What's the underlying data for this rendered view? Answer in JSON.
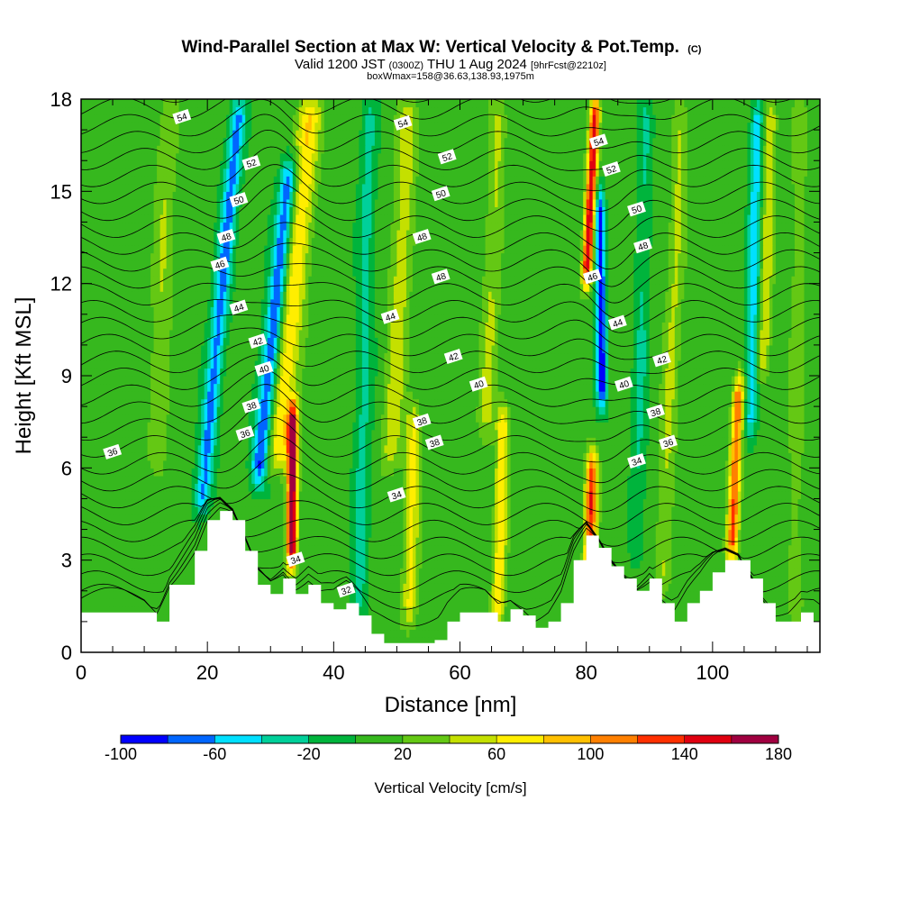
{
  "header": {
    "title_main": "Wind-Parallel Section at Max W: Vertical Velocity & Pot.Temp.",
    "title_copyright": "(C)",
    "subtitle_prefix": "Valid 1200 JST",
    "subtitle_utc": "(0300Z)",
    "subtitle_date": "THU 1 Aug 2024",
    "subtitle_forecast": "[9hrFcst@2210z]",
    "subtitle_box": "boxWmax=158@36.63,138.93,1975m"
  },
  "chart_data": {
    "type": "heatmap",
    "xlabel": "Distance [nm]",
    "ylabel": "Height [Kft MSL]",
    "xlim": [
      0,
      117
    ],
    "ylim": [
      0,
      18
    ],
    "x_ticks": [
      "0",
      "20",
      "40",
      "60",
      "80",
      "100"
    ],
    "y_ticks": [
      "0",
      "3",
      "6",
      "9",
      "12",
      "15",
      "18"
    ],
    "colorbar": {
      "label": "Vertical Velocity [cm/s]",
      "tick_labels": [
        "-100",
        "-60",
        "-20",
        "20",
        "60",
        "100",
        "140",
        "180"
      ],
      "levels": [
        -100,
        -80,
        -60,
        -40,
        -20,
        0,
        20,
        40,
        60,
        80,
        100,
        120,
        140,
        160,
        180
      ],
      "colors": [
        "#0000ff",
        "#0066ff",
        "#00e0ff",
        "#00d09a",
        "#00b43c",
        "#36b81e",
        "#64c814",
        "#c4e000",
        "#ffee00",
        "#ffc000",
        "#ff8000",
        "#ff3000",
        "#e00010",
        "#a00040",
        "#60108c"
      ]
    },
    "terrain_kft": [
      [
        0,
        1.3
      ],
      [
        10,
        1.3
      ],
      [
        12,
        1.0
      ],
      [
        14,
        2.2
      ],
      [
        18,
        3.3
      ],
      [
        20,
        4.3
      ],
      [
        22,
        4.6
      ],
      [
        24,
        4.3
      ],
      [
        26,
        3.3
      ],
      [
        28,
        2.2
      ],
      [
        30,
        1.9
      ],
      [
        32,
        2.4
      ],
      [
        34,
        1.9
      ],
      [
        36,
        2.2
      ],
      [
        38,
        1.6
      ],
      [
        40,
        1.4
      ],
      [
        42,
        1.6
      ],
      [
        44,
        1.2
      ],
      [
        46,
        0.6
      ],
      [
        48,
        0.3
      ],
      [
        52,
        0.3
      ],
      [
        56,
        0.4
      ],
      [
        58,
        1.0
      ],
      [
        60,
        1.3
      ],
      [
        64,
        1.3
      ],
      [
        66,
        1.0
      ],
      [
        68,
        1.4
      ],
      [
        70,
        1.2
      ],
      [
        72,
        0.8
      ],
      [
        74,
        1.0
      ],
      [
        76,
        1.6
      ],
      [
        78,
        3.0
      ],
      [
        80,
        3.8
      ],
      [
        82,
        3.4
      ],
      [
        84,
        2.8
      ],
      [
        86,
        2.4
      ],
      [
        88,
        2.0
      ],
      [
        90,
        2.4
      ],
      [
        92,
        1.6
      ],
      [
        94,
        1.0
      ],
      [
        96,
        1.6
      ],
      [
        98,
        2.0
      ],
      [
        100,
        2.6
      ],
      [
        102,
        3.0
      ],
      [
        104,
        3.0
      ],
      [
        106,
        2.4
      ],
      [
        108,
        1.6
      ],
      [
        110,
        1.0
      ],
      [
        112,
        1.0
      ],
      [
        114,
        1.3
      ],
      [
        116,
        1.0
      ],
      [
        117,
        0.7
      ]
    ],
    "theta_contours": [
      32,
      34,
      36,
      38,
      40,
      42,
      44,
      46,
      48,
      50,
      52,
      54
    ],
    "contour_labels": [
      {
        "t": "54",
        "x": 16,
        "y": 17.4
      },
      {
        "t": "52",
        "x": 27,
        "y": 15.9
      },
      {
        "t": "50",
        "x": 25,
        "y": 14.7
      },
      {
        "t": "48",
        "x": 23,
        "y": 13.5
      },
      {
        "t": "46",
        "x": 22,
        "y": 12.6
      },
      {
        "t": "44",
        "x": 25,
        "y": 11.2
      },
      {
        "t": "42",
        "x": 28,
        "y": 10.1
      },
      {
        "t": "40",
        "x": 29,
        "y": 9.2
      },
      {
        "t": "38",
        "x": 27,
        "y": 8.0
      },
      {
        "t": "36",
        "x": 26,
        "y": 7.1
      },
      {
        "t": "36",
        "x": 5,
        "y": 6.5
      },
      {
        "t": "34",
        "x": 34,
        "y": 3.0
      },
      {
        "t": "32",
        "x": 42,
        "y": 2.0
      },
      {
        "t": "54",
        "x": 51,
        "y": 17.2
      },
      {
        "t": "52",
        "x": 58,
        "y": 16.1
      },
      {
        "t": "50",
        "x": 57,
        "y": 14.9
      },
      {
        "t": "48",
        "x": 54,
        "y": 13.5
      },
      {
        "t": "48",
        "x": 57,
        "y": 12.2
      },
      {
        "t": "44",
        "x": 49,
        "y": 10.9
      },
      {
        "t": "42",
        "x": 59,
        "y": 9.6
      },
      {
        "t": "40",
        "x": 63,
        "y": 8.7
      },
      {
        "t": "38",
        "x": 54,
        "y": 7.5
      },
      {
        "t": "38",
        "x": 56,
        "y": 6.8
      },
      {
        "t": "34",
        "x": 50,
        "y": 5.1
      },
      {
        "t": "54",
        "x": 82,
        "y": 16.6
      },
      {
        "t": "52",
        "x": 84,
        "y": 15.7
      },
      {
        "t": "50",
        "x": 88,
        "y": 14.4
      },
      {
        "t": "48",
        "x": 89,
        "y": 13.2
      },
      {
        "t": "46",
        "x": 81,
        "y": 12.2
      },
      {
        "t": "44",
        "x": 85,
        "y": 10.7
      },
      {
        "t": "42",
        "x": 92,
        "y": 9.5
      },
      {
        "t": "40",
        "x": 86,
        "y": 8.7
      },
      {
        "t": "38",
        "x": 91,
        "y": 7.8
      },
      {
        "t": "36",
        "x": 93,
        "y": 6.8
      },
      {
        "t": "34",
        "x": 88,
        "y": 6.2
      }
    ]
  }
}
